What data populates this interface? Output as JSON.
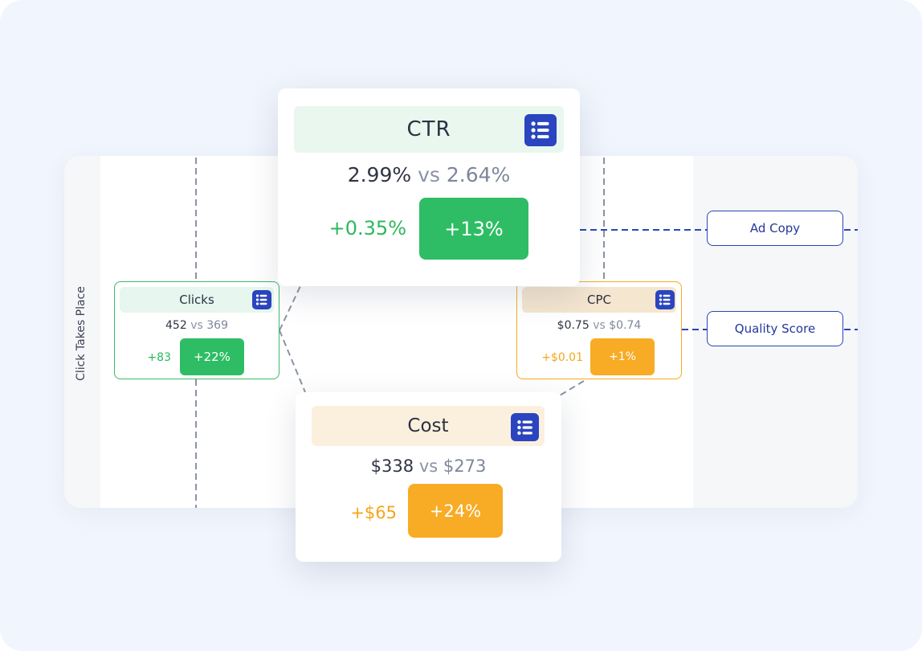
{
  "side_label": "Click Takes Place",
  "tags": {
    "ad_copy": "Ad Copy",
    "quality_score": "Quality Score"
  },
  "nodes": {
    "ctr": {
      "title": "CTR",
      "current": "2.99%",
      "vs": "vs",
      "previous": "2.64%",
      "delta": "+0.35%",
      "percent": "+13%",
      "trend": "up-good"
    },
    "clicks": {
      "title": "Clicks",
      "current": "452",
      "vs": "vs",
      "previous": "369",
      "delta": "+83",
      "percent": "+22%",
      "trend": "up-good"
    },
    "cpc": {
      "title": "CPC",
      "current": "$0.75",
      "vs": "vs",
      "previous": "$0.74",
      "delta": "+$0.01",
      "percent": "+1%",
      "trend": "up-warn"
    },
    "cost": {
      "title": "Cost",
      "current": "$338",
      "vs": "vs",
      "previous": "$273",
      "delta": "+$65",
      "percent": "+24%",
      "trend": "up-warn"
    }
  },
  "colors": {
    "good": "#2ebd64",
    "warn": "#f8ab25",
    "accent": "#2a45bf",
    "background": "#f1f5fd"
  },
  "icons": {
    "node_menu": "list-icon"
  }
}
